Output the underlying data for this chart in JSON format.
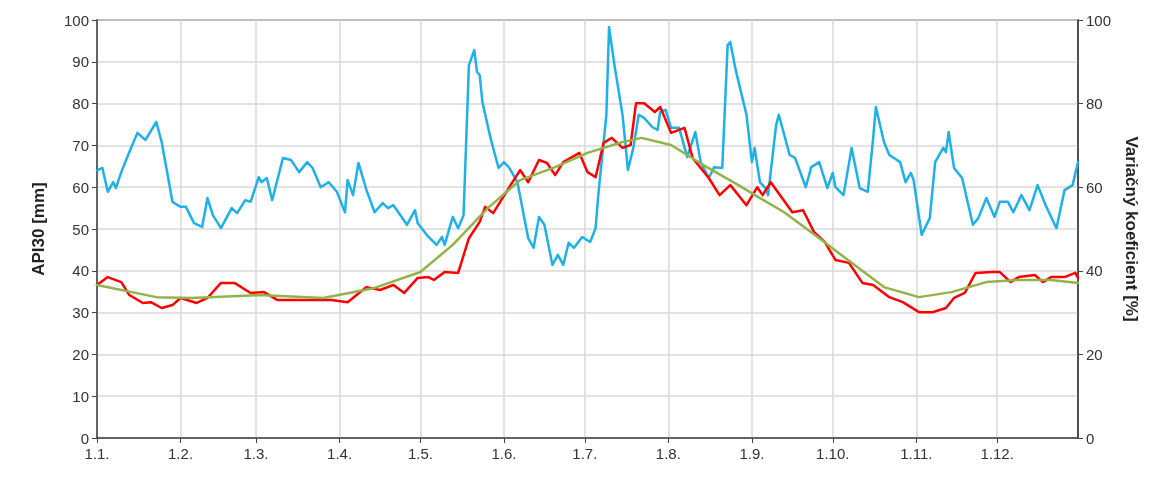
{
  "chart_data": {
    "type": "line",
    "ylabel": "API30 [mm]",
    "y2label": "Variačný koeficient [%]",
    "xlim": [
      "--01-01",
      "--12-31"
    ],
    "xticks": [
      {
        "value": "--01-01",
        "label": "1.1."
      },
      {
        "value": "--02-01",
        "label": "1.2."
      },
      {
        "value": "--03-01",
        "label": "1.3."
      },
      {
        "value": "--04-01",
        "label": "1.4."
      },
      {
        "value": "--05-01",
        "label": "1.5."
      },
      {
        "value": "--06-01",
        "label": "1.6."
      },
      {
        "value": "--07-01",
        "label": "1.7."
      },
      {
        "value": "--08-01",
        "label": "1.8."
      },
      {
        "value": "--09-01",
        "label": "1.9."
      },
      {
        "value": "--10-01",
        "label": "1.10."
      },
      {
        "value": "--11-01",
        "label": "1.11."
      },
      {
        "value": "--12-01",
        "label": "1.12."
      }
    ],
    "ylim": [
      0,
      100
    ],
    "yticks": [
      0,
      10,
      20,
      30,
      40,
      50,
      60,
      70,
      80,
      90,
      100
    ],
    "y2lim": [
      0,
      100
    ],
    "y2ticks": [
      0,
      20,
      40,
      60,
      80,
      100
    ],
    "grid": true,
    "marker": "none",
    "line_style": "solid",
    "series": [
      {
        "color": "#1fb0e8",
        "x": [
          "--01-01",
          "--01-03",
          "--01-05",
          "--01-07",
          "--01-08",
          "--01-10",
          "--01-13",
          "--01-16",
          "--01-19",
          "--01-23",
          "--01-25",
          "--01-29",
          "--02-01",
          "--02-03",
          "--02-06",
          "--02-09",
          "--02-11",
          "--02-13",
          "--02-16",
          "--02-20",
          "--02-22",
          "--02-25",
          "--02-27",
          "--03-02",
          "--03-03",
          "--03-05",
          "--03-07",
          "--03-11",
          "--03-14",
          "--03-17",
          "--03-20",
          "--03-22",
          "--03-25",
          "--03-28",
          "--03-31",
          "--04-03",
          "--04-04",
          "--04-06",
          "--04-08",
          "--04-11",
          "--04-14",
          "--04-17",
          "--04-19",
          "--04-21",
          "--04-26",
          "--04-29",
          "--04-30",
          "--05-04",
          "--05-07",
          "--05-09",
          "--05-10",
          "--05-13",
          "--05-15",
          "--05-17",
          "--05-19",
          "--05-21",
          "--05-22",
          "--05-23",
          "--05-24",
          "--05-27",
          "--05-30",
          "--06-01",
          "--06-03",
          "--06-06",
          "--06-10",
          "--06-12",
          "--06-14",
          "--06-16",
          "--06-19",
          "--06-21",
          "--06-23",
          "--06-25",
          "--06-27",
          "--06-30",
          "--07-03",
          "--07-05",
          "--07-06",
          "--07-09",
          "--07-10",
          "--07-12",
          "--07-15",
          "--07-17",
          "--07-19",
          "--07-21",
          "--07-23",
          "--07-26",
          "--07-28",
          "--07-29",
          "--07-31",
          "--08-02",
          "--08-05",
          "--08-08",
          "--08-11",
          "--08-13",
          "--08-16",
          "--08-18",
          "--08-21",
          "--08-23",
          "--08-24",
          "--08-26",
          "--08-30",
          "--09-01",
          "--09-02",
          "--09-04",
          "--09-06",
          "--09-07",
          "--09-10",
          "--09-11",
          "--09-15",
          "--09-17",
          "--09-21",
          "--09-23",
          "--09-26",
          "--09-29",
          "--10-01",
          "--10-02",
          "--10-05",
          "--10-08",
          "--10-11",
          "--10-14",
          "--10-16",
          "--10-17",
          "--10-20",
          "--10-22",
          "--10-26",
          "--10-28",
          "--10-30",
          "--10-31",
          "--11-03",
          "--11-06",
          "--11-08",
          "--11-11",
          "--11-12",
          "--11-13",
          "--11-15",
          "--11-18",
          "--11-22",
          "--11-24",
          "--11-27",
          "--11-30",
          "--12-02",
          "--12-05",
          "--12-07",
          "--12-10",
          "--12-13",
          "--12-16",
          "--12-19",
          "--12-23",
          "--12-26",
          "--12-29",
          "--12-31"
        ],
        "values": [
          64,
          64.6,
          58.9,
          61.2,
          59.8,
          63.6,
          68.4,
          73,
          71.3,
          75.6,
          70.8,
          56.5,
          55.3,
          55.3,
          51.4,
          50.5,
          57.4,
          53.3,
          50.2,
          55,
          53.8,
          56.9,
          56.5,
          62.4,
          61.2,
          62.2,
          56.9,
          67,
          66.5,
          63.6,
          66,
          64.6,
          60,
          61.2,
          58.9,
          54,
          61.7,
          58.1,
          65.8,
          59.3,
          54,
          56.2,
          55,
          55.7,
          51,
          54.5,
          51.4,
          48.1,
          46.2,
          48.1,
          46.2,
          52.9,
          50.2,
          53.3,
          89.2,
          92.8,
          87.6,
          86.8,
          80.4,
          71.8,
          64.6,
          66,
          64.6,
          61.2,
          47.8,
          45.5,
          52.9,
          51,
          41.4,
          43.8,
          41.4,
          46.7,
          45.5,
          48.1,
          46.9,
          50.2,
          58.1,
          77.3,
          98.3,
          89.2,
          77.3,
          64.1,
          69.4,
          77.3,
          76.6,
          74.4,
          73.7,
          78,
          78.5,
          74.2,
          74.2,
          67.2,
          73.2,
          66,
          62.2,
          64.8,
          64.6,
          94,
          94.7,
          88,
          77.3,
          66,
          69.4,
          61.2,
          59.8,
          58.1,
          74.9,
          77.3,
          67.7,
          67,
          60,
          64.8,
          66,
          59.8,
          63.4,
          60,
          58.1,
          69.4,
          59.8,
          58.9,
          71.8,
          79.2,
          70.8,
          67.7,
          66,
          61.2,
          63.4,
          61.7,
          48.6,
          52.6,
          66,
          69.4,
          68.4,
          73.2,
          64.6,
          62.2,
          51,
          52.6,
          57.4,
          52.9,
          56.5,
          56.5,
          54,
          58.1,
          54.5,
          60.5,
          55.7,
          50.2,
          59.3,
          60.5,
          66
        ]
      },
      {
        "color": "#ff0000",
        "x": [
          "--01-01",
          "--01-05",
          "--01-10",
          "--01-13",
          "--01-18",
          "--01-21",
          "--01-25",
          "--01-29",
          "--02-01",
          "--02-07",
          "--02-11",
          "--02-16",
          "--02-21",
          "--02-27",
          "--03-04",
          "--03-09",
          "--03-20",
          "--03-29",
          "--04-04",
          "--04-11",
          "--04-16",
          "--04-21",
          "--04-25",
          "--04-30",
          "--05-04",
          "--05-06",
          "--05-10",
          "--05-15",
          "--05-19",
          "--05-23",
          "--05-25",
          "--05-28",
          "--06-03",
          "--06-07",
          "--06-10",
          "--06-14",
          "--06-17",
          "--06-20",
          "--06-23",
          "--06-29",
          "--07-02",
          "--07-05",
          "--07-08",
          "--07-11",
          "--07-15",
          "--07-18",
          "--07-20",
          "--07-23",
          "--07-27",
          "--07-29",
          "--08-02",
          "--08-07",
          "--08-10",
          "--08-16",
          "--08-20",
          "--08-24",
          "--08-30",
          "--09-03",
          "--09-05",
          "--09-08",
          "--09-16",
          "--09-20",
          "--09-24",
          "--09-28",
          "--10-02",
          "--10-07",
          "--10-12",
          "--10-16",
          "--10-22",
          "--10-27",
          "--11-02",
          "--11-07",
          "--11-12",
          "--11-15",
          "--11-19",
          "--11-23",
          "--11-29",
          "--12-02",
          "--12-06",
          "--12-09",
          "--12-15",
          "--12-18",
          "--12-21",
          "--12-26",
          "--12-30",
          "--12-31"
        ],
        "values": [
          36.6,
          38.5,
          37.3,
          34.2,
          32.3,
          32.5,
          31.1,
          31.8,
          33.5,
          32.3,
          33.5,
          37.1,
          37.1,
          34.7,
          34.9,
          33,
          33,
          33,
          32.5,
          36.1,
          35.4,
          36.6,
          34.7,
          38.3,
          38.5,
          37.8,
          39.7,
          39.5,
          47.8,
          51.7,
          55.3,
          53.8,
          60,
          64.1,
          61.2,
          66.5,
          65.8,
          62.9,
          66,
          68.2,
          63.6,
          62.4,
          70.6,
          71.8,
          69.4,
          70.1,
          80.1,
          80.1,
          78,
          79.2,
          73,
          74.2,
          67,
          62.2,
          58.1,
          60.5,
          55.7,
          60,
          58.1,
          61.2,
          54,
          54.5,
          49.3,
          46.9,
          42.6,
          41.9,
          37.1,
          36.6,
          33.7,
          32.5,
          30.1,
          30.1,
          31.1,
          33.5,
          34.7,
          39.5,
          39.7,
          39.7,
          37.3,
          38.5,
          39,
          37.3,
          38.5,
          38.5,
          39.5,
          38.3
        ]
      },
      {
        "color": "#92b24a",
        "x": [
          "--01-01",
          "--01-23",
          "--02-05",
          "--03-02",
          "--03-26",
          "--04-14",
          "--05-01",
          "--05-13",
          "--05-26",
          "--06-07",
          "--06-20",
          "--07-02",
          "--07-15",
          "--07-22",
          "--08-02",
          "--08-14",
          "--08-27",
          "--09-04",
          "--09-13",
          "--09-26",
          "--10-08",
          "--10-20",
          "--11-02",
          "--11-14",
          "--11-27",
          "--12-09",
          "--12-21",
          "--12-31"
        ],
        "values": [
          36.6,
          33.7,
          33.5,
          34.2,
          33.5,
          35.9,
          39.7,
          46.2,
          55,
          61.7,
          64.8,
          68.2,
          70.8,
          71.8,
          70.1,
          65.3,
          60.5,
          57.4,
          54,
          47.8,
          41.9,
          36.1,
          33.7,
          34.9,
          37.3,
          37.8,
          37.8,
          37.1
        ]
      }
    ]
  }
}
